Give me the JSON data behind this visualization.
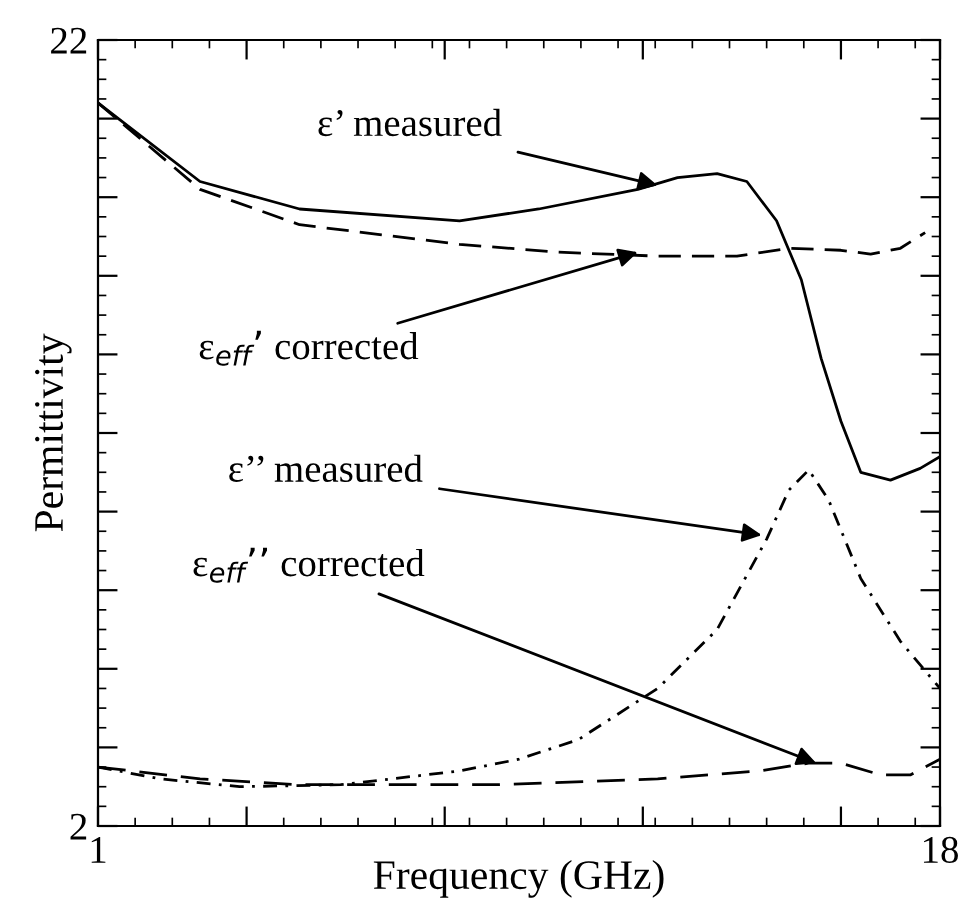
{
  "chart_data": {
    "type": "line",
    "xlabel": "Frequency (GHz)",
    "ylabel": "Permittivity",
    "xlim": [
      1,
      18
    ],
    "ylim": [
      2,
      22
    ],
    "xticks": [
      1,
      {
        "value": 4,
        "label": null
      },
      {
        "value": 8,
        "label": null
      },
      {
        "value": 12,
        "label": null
      },
      {
        "value": 16,
        "label": null
      },
      18
    ],
    "yticks": [
      2,
      {
        "value": 4,
        "label": null
      },
      {
        "value": 6,
        "label": null
      },
      {
        "value": 8,
        "label": null
      },
      {
        "value": 10,
        "label": null
      },
      {
        "value": 12,
        "label": null
      },
      {
        "value": 14,
        "label": null
      },
      {
        "value": 16,
        "label": null
      },
      {
        "value": 18,
        "label": null
      },
      {
        "value": 20,
        "label": null
      },
      22
    ],
    "grid": false,
    "legend": false,
    "marker": "none",
    "series": [
      {
        "color": "#000000",
        "line_style": "solid",
        "x": [
          1,
          3.06,
          5.07,
          8.3,
          9.9,
          11.9,
          12.7,
          13.5,
          14.1,
          14.7,
          15.2,
          15.6,
          16.0,
          16.4,
          17.0,
          17.6,
          18
        ],
        "values": [
          20.4,
          18.4,
          17.7,
          17.4,
          17.7,
          18.2,
          18.5,
          18.6,
          18.4,
          17.4,
          15.9,
          13.9,
          12.3,
          11.0,
          10.8,
          11.1,
          11.4
        ]
      },
      {
        "color": "#000000",
        "line_style": "dashed",
        "x": [
          1,
          3.06,
          5.07,
          8.3,
          10.3,
          12.3,
          13.9,
          14.95,
          16.0,
          16.6,
          17.2,
          17.7
        ],
        "values": [
          20.4,
          18.2,
          17.3,
          16.8,
          16.6,
          16.5,
          16.5,
          16.7,
          16.65,
          16.55,
          16.7,
          17.1
        ]
      },
      {
        "color": "#000000",
        "line_style": "dashed",
        "x": [
          1,
          2.25,
          3.86,
          5.9,
          8.3,
          9.5,
          10.7,
          12.3,
          13.5,
          14.5,
          14.95,
          15.35,
          15.75,
          16.4,
          17.2,
          18
        ],
        "values": [
          3.5,
          3.2,
          3.0,
          3.05,
          3.4,
          3.7,
          4.2,
          5.5,
          7.0,
          9.3,
          10.55,
          11.06,
          10.3,
          8.3,
          6.7,
          5.5
        ]
      },
      {
        "color": "#000000",
        "line_style": "dashed",
        "x": [
          1,
          3.06,
          5.07,
          9.1,
          12.3,
          14.35,
          15.35,
          16.0,
          16.8,
          17.4,
          18
        ],
        "values": [
          3.5,
          3.2,
          3.05,
          3.05,
          3.2,
          3.4,
          3.6,
          3.6,
          3.3,
          3.3,
          3.7
        ]
      }
    ],
    "annotations": [
      {
        "text": "ε’ measured",
        "x": 12.3,
        "y": 18.3
      },
      {
        "text": "ε$_{eff}$’ corrected",
        "x": 11.9,
        "y": 16.6
      },
      {
        "text": "ε’’ measured",
        "x": 14.4,
        "y": 9.4
      },
      {
        "text": "ε$_{eff}$’’ corrected",
        "x": 15.5,
        "y": 3.6
      }
    ]
  }
}
